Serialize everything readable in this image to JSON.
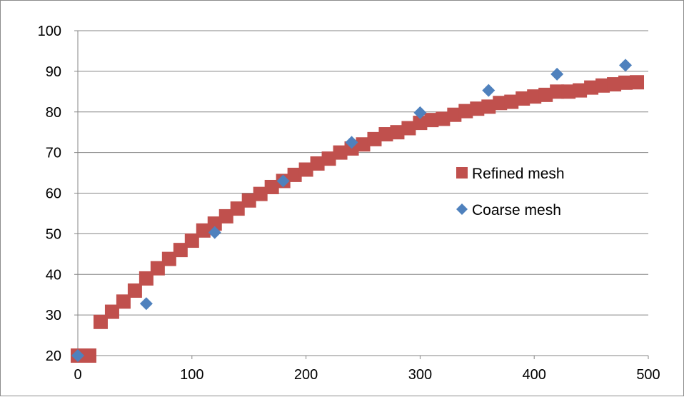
{
  "chart_data": {
    "type": "scatter",
    "title": "",
    "xlabel": "",
    "ylabel": "",
    "xlim": [
      0,
      500
    ],
    "ylim": [
      20,
      100
    ],
    "x_ticks": [
      0,
      100,
      200,
      300,
      400,
      500
    ],
    "y_ticks": [
      20,
      30,
      40,
      50,
      60,
      70,
      80,
      90,
      100
    ],
    "grid": {
      "horizontal": true,
      "vertical": false
    },
    "legend_position": "right",
    "series": [
      {
        "name": "Refined mesh",
        "marker": "square",
        "color": "#C0504D",
        "x": [
          0,
          10,
          20,
          30,
          40,
          50,
          60,
          70,
          80,
          90,
          100,
          110,
          120,
          130,
          140,
          150,
          160,
          170,
          180,
          190,
          200,
          210,
          220,
          230,
          240,
          250,
          260,
          270,
          280,
          290,
          300,
          310,
          320,
          330,
          340,
          350,
          360,
          370,
          380,
          390,
          400,
          410,
          420,
          430,
          440,
          450,
          460,
          470,
          480,
          490
        ],
        "y": [
          20,
          20,
          28.3,
          30.8,
          33.3,
          36,
          39,
          41.5,
          43.8,
          46,
          48.3,
          50.8,
          52.5,
          54.3,
          56.2,
          58.2,
          59.8,
          61.5,
          63,
          64.5,
          65.8,
          67.3,
          68.5,
          70,
          71,
          72,
          73.3,
          74.5,
          75,
          76,
          77.3,
          78,
          78.3,
          79.3,
          80.2,
          80.8,
          81.3,
          82.2,
          82.5,
          83.3,
          83.8,
          84.2,
          85,
          85,
          85.3,
          86,
          86.5,
          86.8,
          87.2,
          87.3
        ]
      },
      {
        "name": "Coarse mesh",
        "marker": "diamond",
        "color": "#4F81BD",
        "x": [
          0,
          60,
          120,
          180,
          240,
          300,
          360,
          420,
          480
        ],
        "y": [
          20,
          32.8,
          50.3,
          63,
          72.5,
          79.8,
          85.3,
          89.3,
          91.5
        ]
      }
    ]
  }
}
